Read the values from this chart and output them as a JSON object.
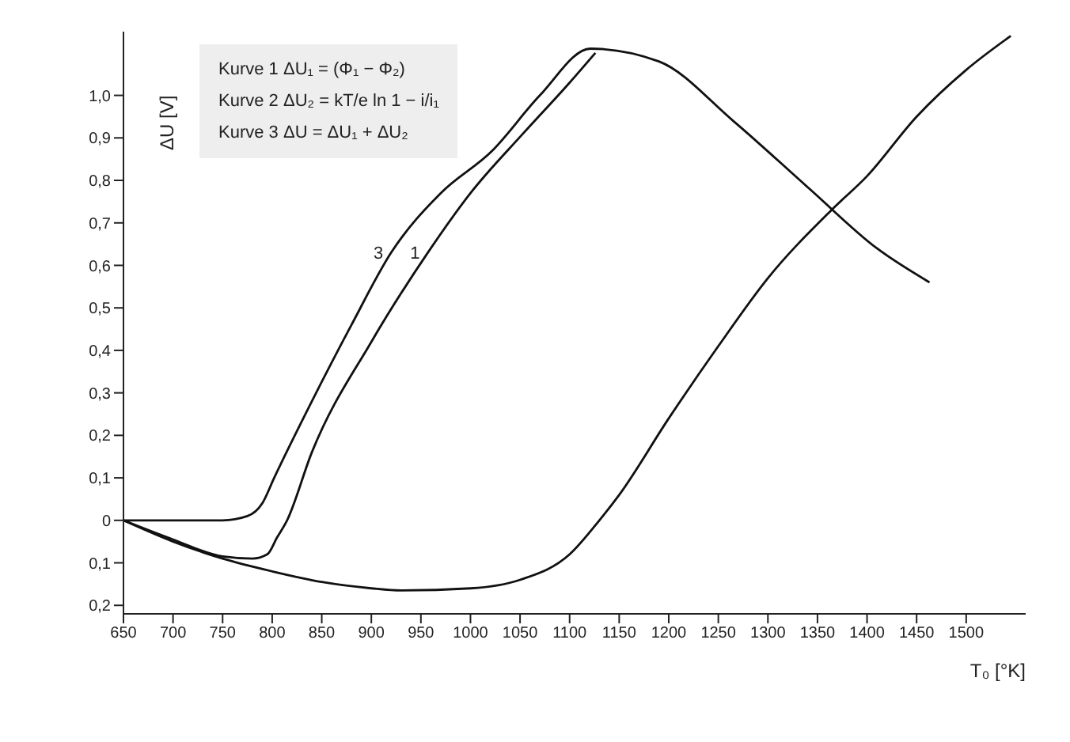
{
  "chart_data": {
    "type": "line",
    "xlabel": "T₀ [°K]",
    "ylabel": "ΔU [V]",
    "xlim": [
      650,
      1560
    ],
    "ylim": [
      -0.22,
      1.15
    ],
    "xticks": [
      650,
      700,
      750,
      800,
      850,
      900,
      950,
      1000,
      1050,
      1100,
      1150,
      1200,
      1250,
      1300,
      1350,
      1400,
      1450,
      1500
    ],
    "yticks": [
      {
        "value": -0.2,
        "label": "0,2"
      },
      {
        "value": -0.1,
        "label": "0,1"
      },
      0,
      {
        "value": 0.1,
        "label": "0,1"
      },
      {
        "value": 0.2,
        "label": "0,2"
      },
      {
        "value": 0.3,
        "label": "0,3"
      },
      {
        "value": 0.4,
        "label": "0,4"
      },
      {
        "value": 0.5,
        "label": "0,5"
      },
      {
        "value": 0.6,
        "label": "0,6"
      },
      {
        "value": 0.7,
        "label": "0,7"
      },
      {
        "value": 0.8,
        "label": "0,8"
      },
      {
        "value": 0.9,
        "label": "0,9"
      },
      {
        "value": 1.0,
        "label": "1,0"
      }
    ],
    "grid": false,
    "series": [
      {
        "color": "#111111",
        "x": [
          650,
          700,
          750,
          780,
          795,
          805,
          815,
          840,
          900,
          957,
          1000,
          1053,
          1100,
          1126
        ],
        "values": [
          0,
          -0.045,
          -0.085,
          -0.09,
          -0.08,
          -0.04,
          0,
          0.16,
          0.42,
          0.63,
          0.77,
          0.91,
          1.03,
          1.1
        ]
      },
      {
        "color": "#111111",
        "x": [
          650,
          750,
          775,
          790,
          802,
          840,
          880,
          920,
          970,
          1022,
          1070,
          1121,
          1190,
          1265,
          1342,
          1410,
          1463
        ],
        "values": [
          0,
          0,
          0.01,
          0.04,
          0.1,
          0.28,
          0.46,
          0.63,
          0.77,
          0.87,
          1.0,
          1.11,
          1.08,
          0.94,
          0.78,
          0.64,
          0.56
        ]
      },
      {
        "color": "#111111",
        "x": [
          650,
          700,
          750,
          800,
          850,
          900,
          930,
          1000,
          1050,
          1100,
          1130,
          1150,
          1200,
          1250,
          1300,
          1364,
          1400,
          1450,
          1500,
          1545
        ],
        "values": [
          0,
          -0.05,
          -0.09,
          -0.12,
          -0.145,
          -0.16,
          -0.165,
          -0.16,
          -0.14,
          -0.08,
          0,
          0.06,
          0.24,
          0.41,
          0.57,
          0.73,
          0.81,
          0.95,
          1.06,
          1.14
        ]
      }
    ],
    "annotations": [
      "Kurve 1   ΔU₁ = (Φ₁ − Φ₂)",
      "Kurve 2   ΔU₂ = kT/e ln 1 − i/i₁",
      "Kurve 3   ΔU = ΔU₁ + ΔU₂",
      {
        "text": "3",
        "x": 920,
        "y": 0.63
      },
      {
        "text": "1",
        "x": 957,
        "y": 0.63
      }
    ]
  }
}
